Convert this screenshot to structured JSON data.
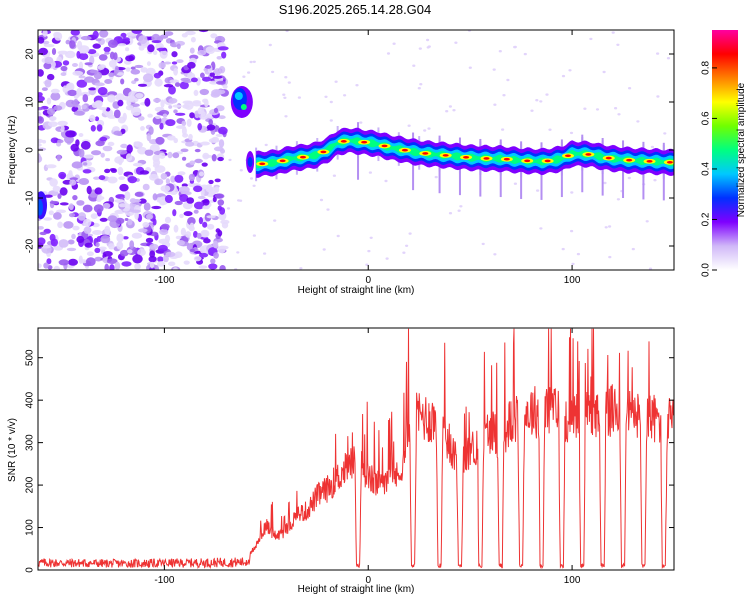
{
  "title": "S196.2025.265.14.28.G04",
  "chart_data": [
    {
      "type": "heatmap",
      "name": "spectrogram",
      "xlabel": "Height of straight line (km)",
      "ylabel": "Frequency (Hz)",
      "xlim": [
        -162,
        150
      ],
      "ylim": [
        -25,
        25
      ],
      "xticks": [
        -100,
        0,
        100
      ],
      "xtick_labels": [
        "-100",
        "0",
        "100"
      ],
      "yticks": [
        -20,
        -10,
        0,
        10,
        20
      ],
      "ytick_labels": [
        "-20",
        "-10",
        "0",
        "10",
        "20"
      ],
      "noise_region_x": [
        -162,
        -70
      ],
      "onset_x": -55,
      "detached_patch": {
        "x": [
          -66,
          -58
        ],
        "y": [
          6,
          14
        ]
      },
      "ridge": {
        "x": [
          -55,
          -45,
          -38,
          -32,
          -25,
          -20,
          -15,
          -10,
          -5,
          0,
          5,
          10,
          15,
          20,
          25,
          30,
          35,
          40,
          45,
          50,
          55,
          60,
          65,
          70,
          75,
          80,
          85,
          90,
          95,
          100,
          105,
          110,
          115,
          120,
          125,
          130,
          135,
          140,
          145,
          150
        ],
        "y": [
          -3,
          -2.6,
          -1.8,
          -1.5,
          -1,
          0,
          1.5,
          2,
          1.8,
          1.5,
          1.2,
          0.6,
          0.2,
          -0.2,
          -0.6,
          -0.8,
          -1,
          -1.2,
          -1.4,
          -1.6,
          -1.7,
          -1.8,
          -1.8,
          -2.0,
          -2.2,
          -2.3,
          -2.4,
          -2.2,
          -1.8,
          -0.8,
          -0.8,
          -1.0,
          -1.5,
          -1.8,
          -2.0,
          -2.2,
          -2.3,
          -2.4,
          -2.5,
          -2.6
        ]
      },
      "colorbar": {
        "label": "Normalized spectral amplitude",
        "range": [
          0,
          0.95
        ],
        "ticks": [
          0.0,
          0.2,
          0.4,
          0.6,
          0.8
        ],
        "tick_labels": [
          "0.0",
          "0.2",
          "0.4",
          "0.6",
          "0.8"
        ],
        "colormap": [
          "#ffffff",
          "#d0b8f8",
          "#7f00ff",
          "#0030ff",
          "#00c8ff",
          "#00ff80",
          "#70ff00",
          "#ffff00",
          "#ff8000",
          "#ff0000",
          "#ff00a0"
        ]
      }
    },
    {
      "type": "line",
      "name": "snr",
      "xlabel": "Height of straight line (km)",
      "ylabel": "SNR (10 * v/v)",
      "xlim": [
        -162,
        150
      ],
      "ylim": [
        0,
        570
      ],
      "xticks": [
        -100,
        0,
        100
      ],
      "xtick_labels": [
        "-100",
        "0",
        "100"
      ],
      "yticks": [
        0,
        100,
        200,
        300,
        400,
        500
      ],
      "ytick_labels": [
        "0",
        "100",
        "200",
        "300",
        "400",
        "500"
      ],
      "color": "#ee3333",
      "envelope": {
        "x": [
          -162,
          -120,
          -80,
          -60,
          -56,
          -50,
          -45,
          -40,
          -35,
          -30,
          -25,
          -20,
          -15,
          -10,
          -5,
          0,
          5,
          10,
          15,
          20,
          25,
          30,
          35,
          40,
          45,
          50,
          55,
          60,
          65,
          70,
          75,
          80,
          85,
          90,
          95,
          100,
          105,
          110,
          115,
          120,
          125,
          130,
          135,
          140,
          145,
          150
        ],
        "y": [
          20,
          18,
          20,
          22,
          60,
          120,
          90,
          110,
          150,
          160,
          200,
          220,
          250,
          280,
          300,
          250,
          230,
          260,
          250,
          380,
          420,
          410,
          400,
          340,
          280,
          320,
          350,
          380,
          360,
          400,
          420,
          430,
          430,
          440,
          420,
          410,
          430,
          400,
          420,
          430,
          420,
          410,
          420,
          410,
          400,
          400
        ]
      },
      "dropouts_x": [
        -5,
        22,
        35,
        45,
        55,
        65,
        75,
        85,
        95,
        105,
        115,
        125,
        135,
        145
      ]
    }
  ]
}
